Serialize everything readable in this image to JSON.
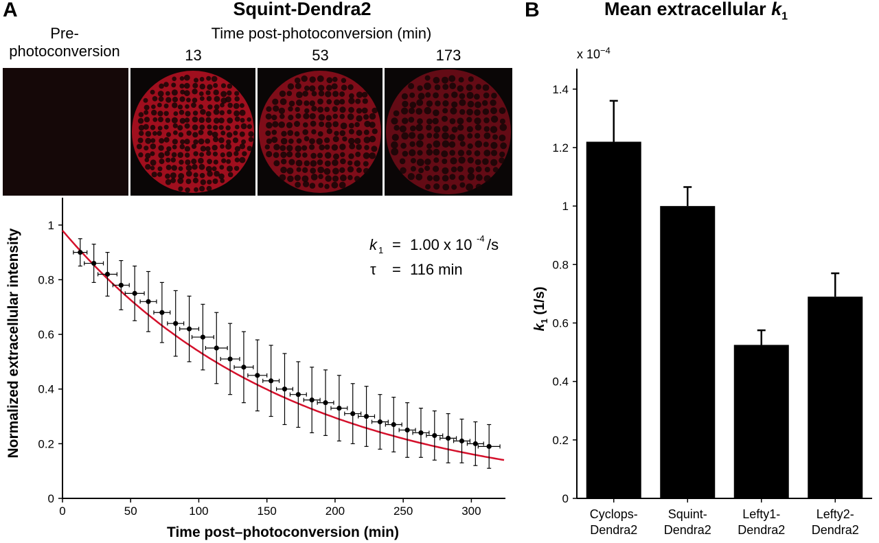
{
  "panel_a": {
    "letter": "A",
    "title": "Squint-Dendra2",
    "pre_label_line1": "Pre-",
    "pre_label_line2": "photoconversion",
    "time_header": "Time post-photoconversion (min)",
    "time_points": [
      "13",
      "53",
      "173"
    ],
    "images": [
      {
        "label": "pre-photoconversion",
        "brightness": 0.05
      },
      {
        "label": "13",
        "brightness": 0.9
      },
      {
        "label": "53",
        "brightness": 0.6
      },
      {
        "label": "173",
        "brightness": 0.35
      }
    ],
    "annotation": {
      "k_symbol": "k",
      "k_sub": "1",
      "k_eq": "=",
      "k_value": "1.00 x 10",
      "k_exp": "-4",
      "k_unit": "/s",
      "tau_symbol": "τ",
      "tau_eq": "=",
      "tau_value": "116 min"
    }
  },
  "panel_b": {
    "letter": "B",
    "title": "Mean extracellular",
    "title_k": "k",
    "title_sub": "1",
    "exponent_label": "x 10",
    "exponent_sup": "−4",
    "ylabel_k": "k",
    "ylabel_sub": "1",
    "ylabel_rest": " (1/s)"
  },
  "colors": {
    "fit_curve": "#d4102b",
    "bars": "#000000",
    "image_red": "#e0142a"
  },
  "chart_data": [
    {
      "type": "scatter",
      "xlabel": "Time post–photoconversion (min)",
      "ylabel": "Normalized extracellular intensity",
      "xlim": [
        0,
        325
      ],
      "ylim": [
        0,
        1.1
      ],
      "xticks": [
        0,
        50,
        100,
        150,
        200,
        250,
        300
      ],
      "yticks": [
        0,
        0.2,
        0.4,
        0.6,
        0.8,
        1
      ],
      "grid": false,
      "fit": {
        "type": "exponential",
        "amplitude": 0.98,
        "k_per_s": 0.0001
      },
      "series": [
        {
          "x": [
            13,
            23,
            33,
            43,
            53,
            63,
            73,
            83,
            93,
            103,
            113,
            123,
            133,
            143,
            153,
            163,
            173,
            183,
            193,
            203,
            213,
            223,
            233,
            243,
            253,
            263,
            273,
            283,
            293,
            303,
            313
          ],
          "y": [
            0.9,
            0.86,
            0.82,
            0.78,
            0.75,
            0.72,
            0.68,
            0.64,
            0.62,
            0.59,
            0.55,
            0.51,
            0.48,
            0.45,
            0.43,
            0.4,
            0.38,
            0.36,
            0.35,
            0.33,
            0.31,
            0.3,
            0.28,
            0.27,
            0.25,
            0.24,
            0.23,
            0.22,
            0.21,
            0.2,
            0.19
          ],
          "yerr": [
            0.05,
            0.07,
            0.08,
            0.09,
            0.1,
            0.11,
            0.11,
            0.12,
            0.12,
            0.12,
            0.13,
            0.13,
            0.13,
            0.13,
            0.13,
            0.13,
            0.12,
            0.12,
            0.12,
            0.12,
            0.11,
            0.11,
            0.1,
            0.1,
            0.1,
            0.09,
            0.09,
            0.09,
            0.08,
            0.08,
            0.08
          ],
          "xerr": [
            5,
            7,
            7,
            6,
            7,
            6,
            6,
            6,
            7,
            8,
            8,
            7,
            7,
            7,
            6,
            6,
            6,
            6,
            6,
            6,
            6,
            6,
            6,
            6,
            6,
            6,
            6,
            6,
            6,
            6,
            8
          ]
        }
      ]
    },
    {
      "type": "bar",
      "title": "Mean extracellular k1",
      "categories": [
        "Cyclops-\nDendra2",
        "Squint-\nDendra2",
        "Lefty1-\nDendra2",
        "Lefty2-\nDendra2"
      ],
      "values": [
        1.22,
        1.0,
        0.525,
        0.69
      ],
      "errors": [
        0.14,
        0.065,
        0.05,
        0.08
      ],
      "ylabel": "k1 (1/s)",
      "scale_note": "x 10^-4",
      "ylim": [
        0,
        1.47
      ],
      "yticks": [
        0,
        0.2,
        0.4,
        0.6,
        0.8,
        1,
        1.2,
        1.4
      ],
      "ytick_labels": [
        "0",
        "0.2",
        "0.4",
        "0.6",
        "0.8",
        "1",
        "1.2",
        "1.4"
      ],
      "grid": false
    }
  ]
}
